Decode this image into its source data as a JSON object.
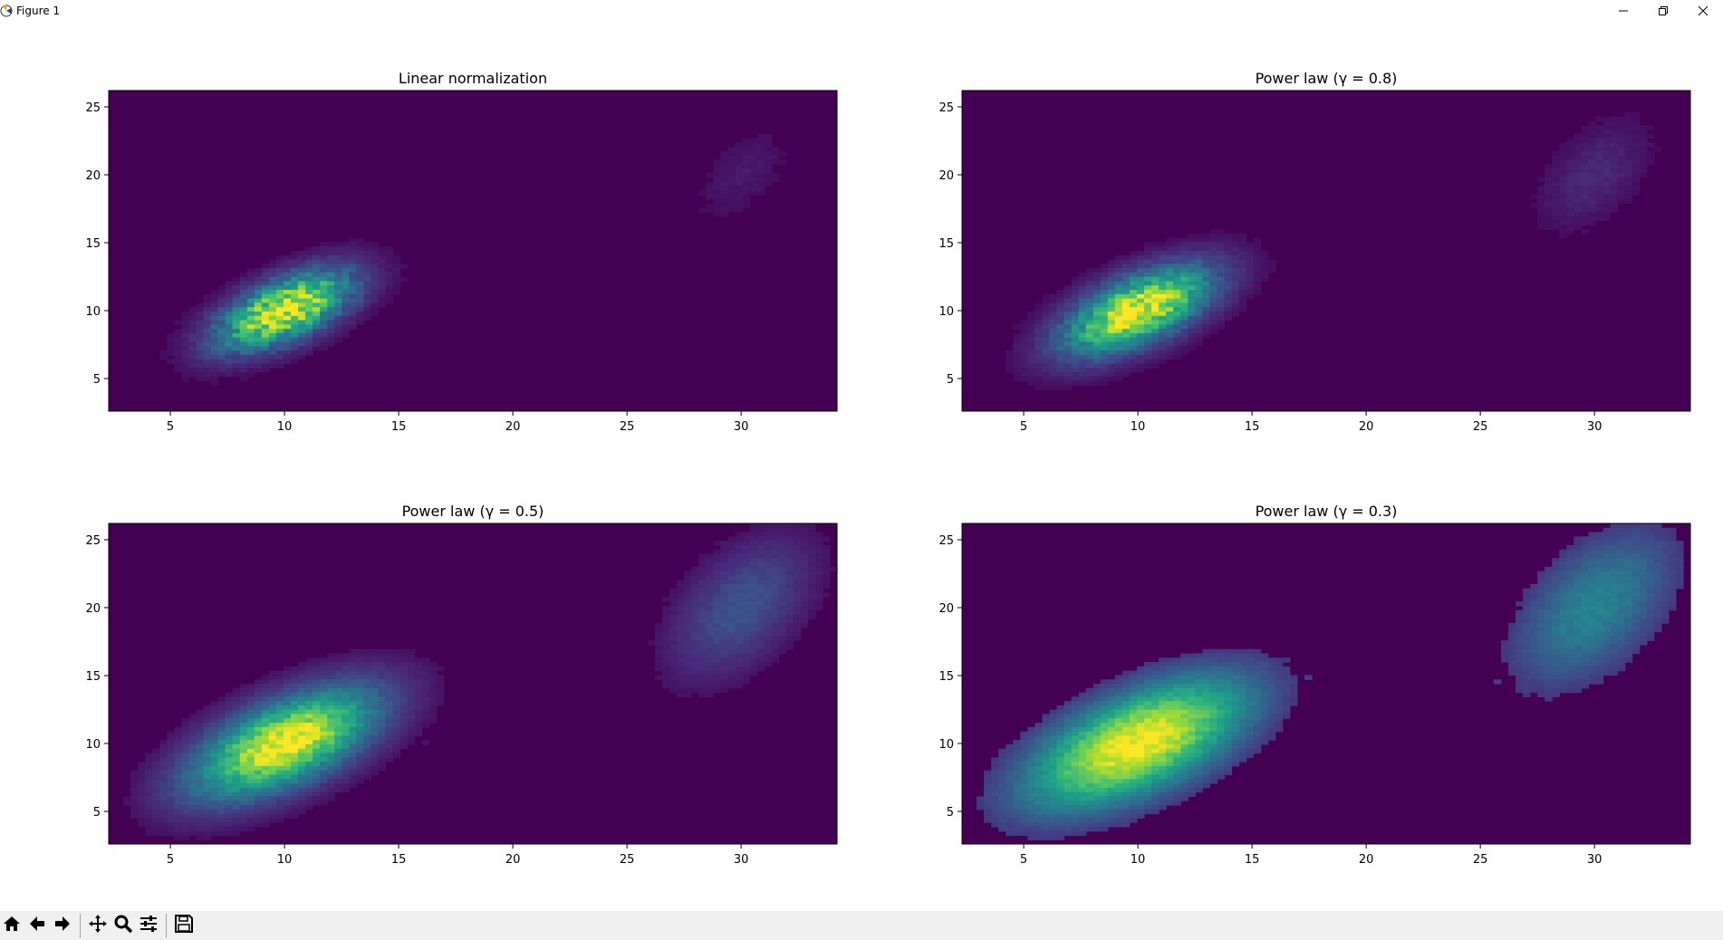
{
  "window": {
    "title": "Figure 1",
    "controls": [
      "minimize",
      "restore",
      "close"
    ]
  },
  "toolbar": {
    "tools": [
      {
        "name": "home-icon"
      },
      {
        "name": "back-icon"
      },
      {
        "name": "forward-icon"
      },
      {
        "name": "pan-icon"
      },
      {
        "name": "zoom-icon"
      },
      {
        "name": "configure-subplots-icon"
      },
      {
        "name": "save-icon"
      }
    ]
  },
  "colors": {
    "background": "#440154",
    "colormap": "viridis",
    "viridis": [
      "#440154",
      "#482878",
      "#3e4989",
      "#31688e",
      "#26828e",
      "#1f9e89",
      "#35b779",
      "#6ece58",
      "#b5de2b",
      "#fde725"
    ]
  },
  "chart_data": [
    {
      "type": "heatmap",
      "title": "Linear normalization",
      "gamma": 1.0,
      "xlim": [
        2.3,
        34.2
      ],
      "ylim": [
        2.6,
        26.2
      ],
      "xticks": [
        5,
        10,
        15,
        20,
        25,
        30
      ],
      "yticks": [
        5,
        10,
        15,
        20,
        25
      ],
      "clusters": [
        {
          "center": [
            10,
            10
          ],
          "sigma": [
            2,
            2
          ],
          "correlation": 0.6,
          "weight": 1.0
        },
        {
          "center": [
            30,
            20
          ],
          "sigma": [
            1.5,
            2.5
          ],
          "correlation": 0.5,
          "weight": 0.07
        }
      ]
    },
    {
      "type": "heatmap",
      "title": "Power law (γ = 0.8)",
      "gamma": 0.8,
      "xlim": [
        2.3,
        34.2
      ],
      "ylim": [
        2.6,
        26.2
      ],
      "xticks": [
        5,
        10,
        15,
        20,
        25,
        30
      ],
      "yticks": [
        5,
        10,
        15,
        20,
        25
      ],
      "clusters": [
        {
          "center": [
            10,
            10
          ],
          "sigma": [
            2,
            2
          ],
          "correlation": 0.6,
          "weight": 1.0
        },
        {
          "center": [
            30,
            20
          ],
          "sigma": [
            1.5,
            2.5
          ],
          "correlation": 0.5,
          "weight": 0.07
        }
      ]
    },
    {
      "type": "heatmap",
      "title": "Power law (γ = 0.5)",
      "gamma": 0.5,
      "xlim": [
        2.3,
        34.2
      ],
      "ylim": [
        2.6,
        26.2
      ],
      "xticks": [
        5,
        10,
        15,
        20,
        25,
        30
      ],
      "yticks": [
        5,
        10,
        15,
        20,
        25
      ],
      "clusters": [
        {
          "center": [
            10,
            10
          ],
          "sigma": [
            2,
            2
          ],
          "correlation": 0.6,
          "weight": 1.0
        },
        {
          "center": [
            30,
            20
          ],
          "sigma": [
            1.5,
            2.5
          ],
          "correlation": 0.5,
          "weight": 0.07
        }
      ]
    },
    {
      "type": "heatmap",
      "title": "Power law (γ = 0.3)",
      "gamma": 0.3,
      "xlim": [
        2.3,
        34.2
      ],
      "ylim": [
        2.6,
        26.2
      ],
      "xticks": [
        5,
        10,
        15,
        20,
        25,
        30
      ],
      "yticks": [
        5,
        10,
        15,
        20,
        25
      ],
      "clusters": [
        {
          "center": [
            10,
            10
          ],
          "sigma": [
            2,
            2
          ],
          "correlation": 0.6,
          "weight": 1.0
        },
        {
          "center": [
            30,
            20
          ],
          "sigma": [
            1.5,
            2.5
          ],
          "correlation": 0.5,
          "weight": 0.07
        }
      ]
    }
  ]
}
